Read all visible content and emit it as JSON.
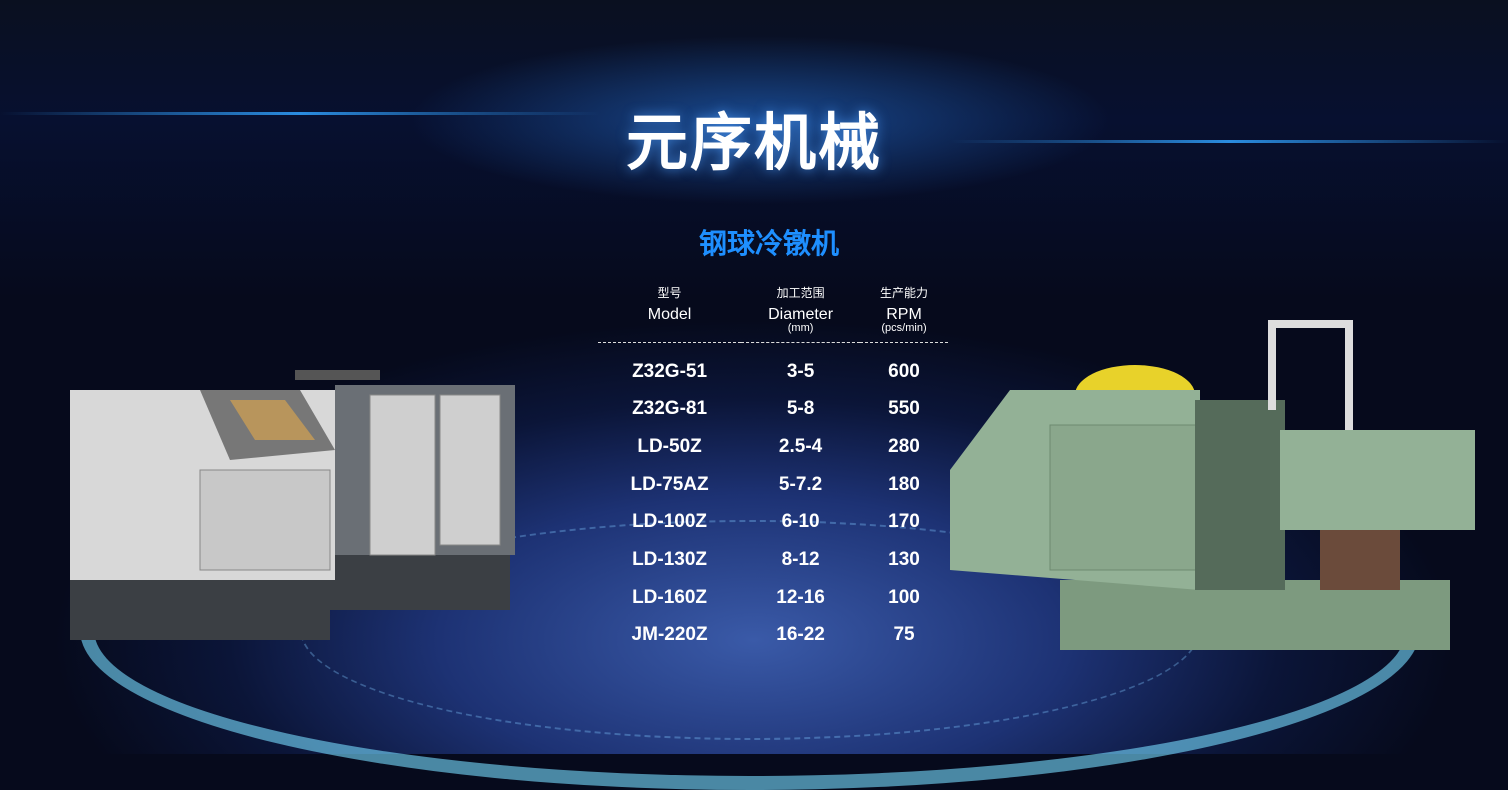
{
  "title": "元序机械",
  "subtitle": "钢球冷镦机",
  "table": {
    "headers": [
      {
        "cn": "型号",
        "en": "Model",
        "unit": ""
      },
      {
        "cn": "加工范围",
        "en": "Diameter",
        "unit": "(mm)"
      },
      {
        "cn": "生产能力",
        "en": "RPM",
        "unit": "(pcs/min)"
      }
    ],
    "rows": [
      [
        "Z32G-51",
        "3-5",
        "600"
      ],
      [
        "Z32G-81",
        "5-8",
        "550"
      ],
      [
        "LD-50Z",
        "2.5-4",
        "280"
      ],
      [
        "LD-75AZ",
        "5-7.2",
        "180"
      ],
      [
        "LD-100Z",
        "6-10",
        "170"
      ],
      [
        "LD-130Z",
        "8-12",
        "130"
      ],
      [
        "LD-160Z",
        "12-16",
        "100"
      ],
      [
        "JM-220Z",
        "16-22",
        "75"
      ]
    ]
  },
  "colors": {
    "accent": "#1e8fff",
    "background": "#0b1538"
  }
}
